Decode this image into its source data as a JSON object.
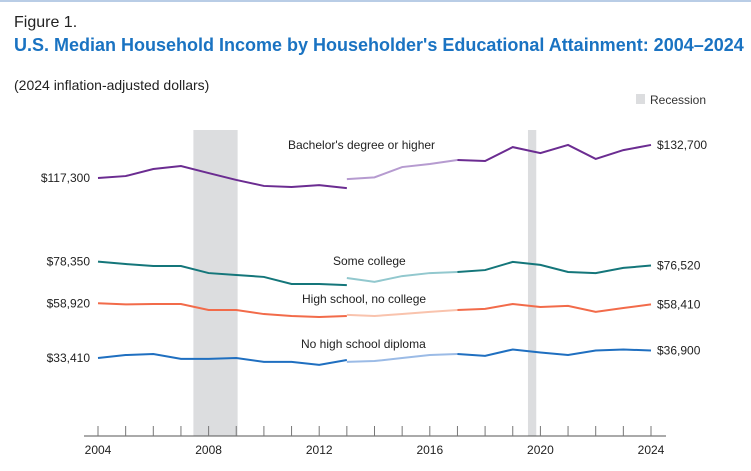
{
  "header": {
    "figure_label": "Figure 1.",
    "title": "U.S. Median Household Income by Householder's Educational Attainment: 2004–2024",
    "subtitle": "(2024 inflation-adjusted dollars)"
  },
  "chart_data": {
    "type": "line",
    "title": "U.S. Median Household Income by Householder's Educational Attainment: 2004–2024",
    "subtitle": "(2024 inflation-adjusted dollars)",
    "xlabel": "",
    "ylabel": "",
    "x": [
      2004,
      2005,
      2006,
      2007,
      2008,
      2009,
      2010,
      2011,
      2012,
      2013,
      2014,
      2015,
      2016,
      2017,
      2018,
      2019,
      2020,
      2021,
      2022,
      2023,
      2024
    ],
    "x_ticks": [
      "2004",
      "2008",
      "2012",
      "2016",
      "2020",
      "2024"
    ],
    "xlim": [
      2004,
      2024
    ],
    "ylim": [
      20000,
      140000
    ],
    "grid": false,
    "legend": {
      "label": "Recession",
      "placement": "top-right",
      "color": "#dcdddf"
    },
    "recessions": [
      [
        2007.45,
        2009.05
      ],
      [
        2019.55,
        2019.85
      ]
    ],
    "break_note_year": 2013,
    "series": [
      {
        "name": "Bachelor's degree or higher",
        "color": "#6b2c91",
        "light_color": "#b69bd0",
        "start_label": "$117,300",
        "end_label": "$132,700",
        "old_2013": 112600,
        "values": [
          117300,
          118200,
          121500,
          122900,
          119600,
          116400,
          113600,
          113100,
          114000,
          116800,
          117600,
          122400,
          123800,
          125700,
          125200,
          131700,
          128900,
          132700,
          126200,
          130300,
          132700
        ]
      },
      {
        "name": "Some college",
        "color": "#14767a",
        "light_color": "#92c8ce",
        "start_label": "$78,350",
        "end_label": "$76,520",
        "old_2013": 67400,
        "values": [
          78350,
          77200,
          76300,
          76300,
          73000,
          72100,
          71200,
          67900,
          67900,
          70700,
          68900,
          71600,
          73000,
          73500,
          74400,
          78200,
          76800,
          73500,
          73000,
          75400,
          76520
        ]
      },
      {
        "name": "High school, no college",
        "color": "#f26b4a",
        "light_color": "#f9c3ad",
        "start_label": "$58,920",
        "end_label": "$58,410",
        "old_2013": 53000,
        "values": [
          58920,
          58400,
          58600,
          58600,
          55800,
          55800,
          53900,
          53000,
          52500,
          53500,
          53000,
          53900,
          54900,
          55800,
          56300,
          58600,
          57200,
          57700,
          54900,
          56700,
          58410
        ]
      },
      {
        "name": "No high school diploma",
        "color": "#1f6fc0",
        "light_color": "#9bbbe6",
        "start_label": "$33,410",
        "end_label": "$36,900",
        "old_2013": 32500,
        "values": [
          33410,
          34800,
          35300,
          33000,
          33000,
          33410,
          31600,
          31600,
          30200,
          31600,
          32000,
          33410,
          34800,
          35300,
          34400,
          37400,
          36000,
          34800,
          36900,
          37400,
          36900
        ]
      }
    ]
  }
}
